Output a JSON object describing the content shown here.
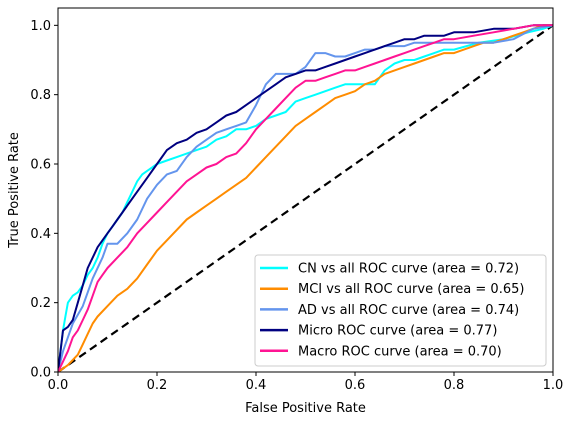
{
  "chart_data": {
    "type": "line",
    "title": "",
    "xlabel": "False Positive Rate",
    "ylabel": "True Positive Rate",
    "xlim": [
      0.0,
      1.0
    ],
    "ylim": [
      0.0,
      1.05
    ],
    "xticks": [
      "0.0",
      "0.2",
      "0.4",
      "0.6",
      "0.8",
      "1.0"
    ],
    "yticks": [
      "0.0",
      "0.2",
      "0.4",
      "0.6",
      "0.8",
      "1.0"
    ],
    "grid": false,
    "legend_position": "lower-right",
    "series": [
      {
        "name": "CN vs all ROC curve (area = 0.72)",
        "color": "#00ffff",
        "x": [
          0,
          0.005,
          0.01,
          0.015,
          0.02,
          0.03,
          0.04,
          0.05,
          0.06,
          0.07,
          0.08,
          0.09,
          0.1,
          0.11,
          0.12,
          0.13,
          0.14,
          0.15,
          0.16,
          0.17,
          0.18,
          0.19,
          0.2,
          0.22,
          0.24,
          0.26,
          0.28,
          0.3,
          0.32,
          0.34,
          0.36,
          0.38,
          0.4,
          0.42,
          0.44,
          0.46,
          0.48,
          0.5,
          0.52,
          0.54,
          0.56,
          0.58,
          0.6,
          0.62,
          0.64,
          0.66,
          0.68,
          0.7,
          0.72,
          0.74,
          0.76,
          0.78,
          0.8,
          0.85,
          0.9,
          0.95,
          0.98,
          1.0
        ],
        "y": [
          0,
          0.06,
          0.12,
          0.16,
          0.2,
          0.22,
          0.23,
          0.25,
          0.28,
          0.3,
          0.33,
          0.37,
          0.4,
          0.42,
          0.44,
          0.46,
          0.49,
          0.52,
          0.55,
          0.57,
          0.58,
          0.59,
          0.6,
          0.61,
          0.62,
          0.63,
          0.64,
          0.65,
          0.67,
          0.68,
          0.7,
          0.7,
          0.71,
          0.73,
          0.74,
          0.75,
          0.78,
          0.79,
          0.8,
          0.81,
          0.82,
          0.83,
          0.83,
          0.83,
          0.83,
          0.87,
          0.89,
          0.9,
          0.9,
          0.91,
          0.92,
          0.93,
          0.93,
          0.95,
          0.96,
          0.98,
          0.99,
          1.0
        ]
      },
      {
        "name": "MCI vs all ROC curve (area = 0.65)",
        "color": "#ff8c00",
        "x": [
          0,
          0.02,
          0.04,
          0.05,
          0.06,
          0.07,
          0.08,
          0.1,
          0.12,
          0.14,
          0.16,
          0.18,
          0.2,
          0.22,
          0.24,
          0.26,
          0.28,
          0.3,
          0.32,
          0.34,
          0.36,
          0.38,
          0.4,
          0.42,
          0.44,
          0.46,
          0.48,
          0.5,
          0.52,
          0.54,
          0.56,
          0.58,
          0.6,
          0.62,
          0.64,
          0.66,
          0.68,
          0.7,
          0.72,
          0.74,
          0.76,
          0.78,
          0.8,
          0.82,
          0.84,
          0.86,
          0.88,
          0.9,
          0.92,
          0.94,
          0.96,
          0.98,
          1.0
        ],
        "y": [
          0,
          0.02,
          0.05,
          0.08,
          0.11,
          0.14,
          0.16,
          0.19,
          0.22,
          0.24,
          0.27,
          0.31,
          0.35,
          0.38,
          0.41,
          0.44,
          0.46,
          0.48,
          0.5,
          0.52,
          0.54,
          0.56,
          0.59,
          0.62,
          0.65,
          0.68,
          0.71,
          0.73,
          0.75,
          0.77,
          0.79,
          0.8,
          0.81,
          0.83,
          0.84,
          0.86,
          0.87,
          0.88,
          0.89,
          0.9,
          0.91,
          0.92,
          0.92,
          0.93,
          0.94,
          0.95,
          0.95,
          0.96,
          0.97,
          0.98,
          0.99,
          1.0,
          1.0
        ]
      },
      {
        "name": "AD vs all ROC curve (area = 0.74)",
        "color": "#6495ed",
        "x": [
          0,
          0.01,
          0.02,
          0.03,
          0.05,
          0.07,
          0.09,
          0.1,
          0.12,
          0.14,
          0.16,
          0.18,
          0.2,
          0.22,
          0.24,
          0.26,
          0.28,
          0.3,
          0.32,
          0.34,
          0.36,
          0.38,
          0.4,
          0.42,
          0.44,
          0.46,
          0.48,
          0.5,
          0.52,
          0.54,
          0.56,
          0.58,
          0.6,
          0.62,
          0.64,
          0.66,
          0.68,
          0.7,
          0.72,
          0.74,
          0.76,
          0.8,
          0.84,
          0.88,
          0.92,
          0.96,
          1.0
        ],
        "y": [
          0,
          0.06,
          0.1,
          0.14,
          0.19,
          0.27,
          0.33,
          0.37,
          0.37,
          0.4,
          0.44,
          0.5,
          0.54,
          0.57,
          0.58,
          0.62,
          0.65,
          0.67,
          0.69,
          0.7,
          0.71,
          0.72,
          0.77,
          0.83,
          0.86,
          0.86,
          0.86,
          0.88,
          0.92,
          0.92,
          0.91,
          0.91,
          0.92,
          0.93,
          0.93,
          0.94,
          0.94,
          0.94,
          0.95,
          0.95,
          0.95,
          0.95,
          0.95,
          0.95,
          0.96,
          0.99,
          1.0
        ]
      },
      {
        "name": "Micro ROC curve (area = 0.77)",
        "color": "#000080",
        "x": [
          0,
          0.01,
          0.02,
          0.03,
          0.04,
          0.05,
          0.06,
          0.07,
          0.08,
          0.09,
          0.1,
          0.11,
          0.12,
          0.14,
          0.16,
          0.18,
          0.2,
          0.22,
          0.24,
          0.26,
          0.28,
          0.3,
          0.32,
          0.34,
          0.36,
          0.38,
          0.4,
          0.42,
          0.44,
          0.46,
          0.48,
          0.5,
          0.52,
          0.54,
          0.56,
          0.58,
          0.6,
          0.62,
          0.64,
          0.66,
          0.68,
          0.7,
          0.72,
          0.74,
          0.76,
          0.78,
          0.8,
          0.84,
          0.88,
          0.92,
          0.96,
          1.0
        ],
        "y": [
          0,
          0.12,
          0.13,
          0.15,
          0.2,
          0.25,
          0.3,
          0.33,
          0.36,
          0.38,
          0.4,
          0.42,
          0.44,
          0.48,
          0.52,
          0.56,
          0.6,
          0.64,
          0.66,
          0.67,
          0.69,
          0.7,
          0.72,
          0.74,
          0.75,
          0.77,
          0.79,
          0.81,
          0.83,
          0.85,
          0.86,
          0.87,
          0.87,
          0.88,
          0.89,
          0.9,
          0.91,
          0.92,
          0.93,
          0.94,
          0.95,
          0.96,
          0.96,
          0.97,
          0.97,
          0.97,
          0.98,
          0.98,
          0.99,
          0.99,
          1.0,
          1.0
        ]
      },
      {
        "name": "Macro ROC curve (area = 0.70)",
        "color": "#ff1493",
        "x": [
          0,
          0.01,
          0.02,
          0.03,
          0.04,
          0.05,
          0.06,
          0.07,
          0.08,
          0.09,
          0.1,
          0.12,
          0.14,
          0.16,
          0.18,
          0.2,
          0.22,
          0.24,
          0.26,
          0.28,
          0.3,
          0.32,
          0.34,
          0.36,
          0.38,
          0.4,
          0.42,
          0.44,
          0.46,
          0.48,
          0.5,
          0.52,
          0.54,
          0.56,
          0.58,
          0.6,
          0.62,
          0.64,
          0.66,
          0.68,
          0.7,
          0.72,
          0.74,
          0.76,
          0.78,
          0.8,
          0.84,
          0.88,
          0.92,
          0.96,
          1.0
        ],
        "y": [
          0,
          0.03,
          0.06,
          0.1,
          0.12,
          0.15,
          0.18,
          0.22,
          0.26,
          0.28,
          0.3,
          0.33,
          0.36,
          0.4,
          0.43,
          0.46,
          0.49,
          0.52,
          0.55,
          0.57,
          0.59,
          0.6,
          0.62,
          0.63,
          0.66,
          0.7,
          0.73,
          0.76,
          0.79,
          0.82,
          0.84,
          0.84,
          0.85,
          0.86,
          0.87,
          0.87,
          0.88,
          0.89,
          0.9,
          0.91,
          0.92,
          0.93,
          0.94,
          0.95,
          0.96,
          0.96,
          0.97,
          0.98,
          0.99,
          1.0,
          1.0
        ]
      }
    ],
    "reference_line": {
      "x": [
        0,
        1
      ],
      "y": [
        0,
        1
      ],
      "color": "#000000",
      "style": "dashed"
    }
  }
}
